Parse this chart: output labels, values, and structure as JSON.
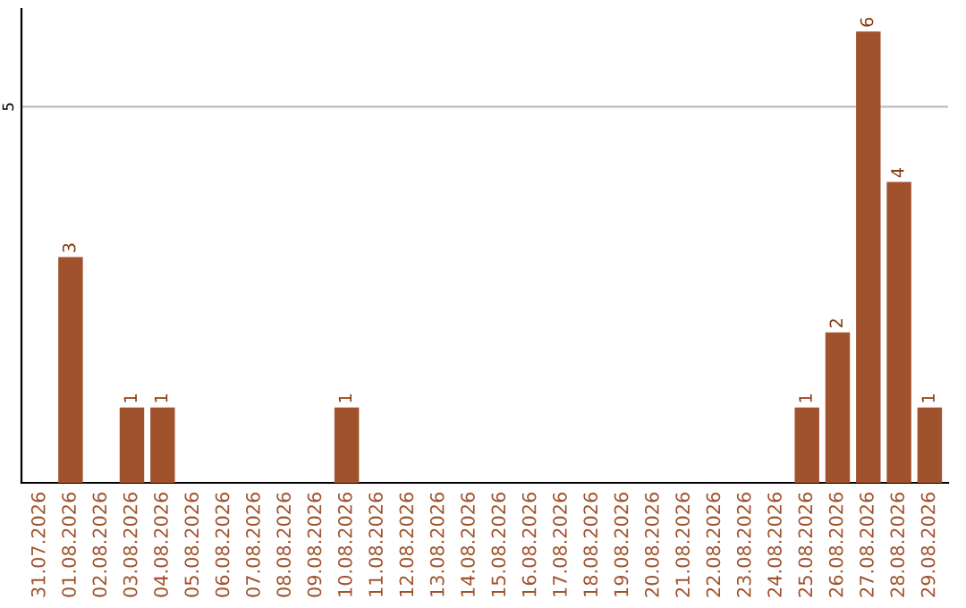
{
  "chart_data": {
    "type": "bar",
    "categories": [
      "31.07.2026",
      "01.08.2026",
      "02.08.2026",
      "03.08.2026",
      "04.08.2026",
      "05.08.2026",
      "06.08.2026",
      "07.08.2026",
      "08.08.2026",
      "09.08.2026",
      "10.08.2026",
      "11.08.2026",
      "12.08.2026",
      "13.08.2026",
      "14.08.2026",
      "15.08.2026",
      "16.08.2026",
      "17.08.2026",
      "18.08.2026",
      "19.08.2026",
      "20.08.2026",
      "21.08.2026",
      "22.08.2026",
      "23.08.2026",
      "24.08.2026",
      "25.08.2026",
      "26.08.2026",
      "27.08.2026",
      "28.08.2026",
      "29.08.2026"
    ],
    "values": [
      0,
      3,
      0,
      1,
      1,
      0,
      0,
      0,
      0,
      0,
      1,
      0,
      0,
      0,
      0,
      0,
      0,
      0,
      0,
      0,
      0,
      0,
      0,
      0,
      0,
      1,
      2,
      6,
      4,
      1
    ],
    "value_labels": [
      null,
      "3",
      null,
      "1",
      "1",
      null,
      null,
      null,
      null,
      null,
      "1",
      null,
      null,
      null,
      null,
      null,
      null,
      null,
      null,
      null,
      null,
      null,
      null,
      null,
      null,
      "1",
      "2",
      "6",
      "4",
      "1"
    ],
    "color": "#a0522d",
    "ylim": [
      0,
      6.3
    ],
    "yticks": [
      5
    ],
    "grid": "y",
    "legend": false
  }
}
